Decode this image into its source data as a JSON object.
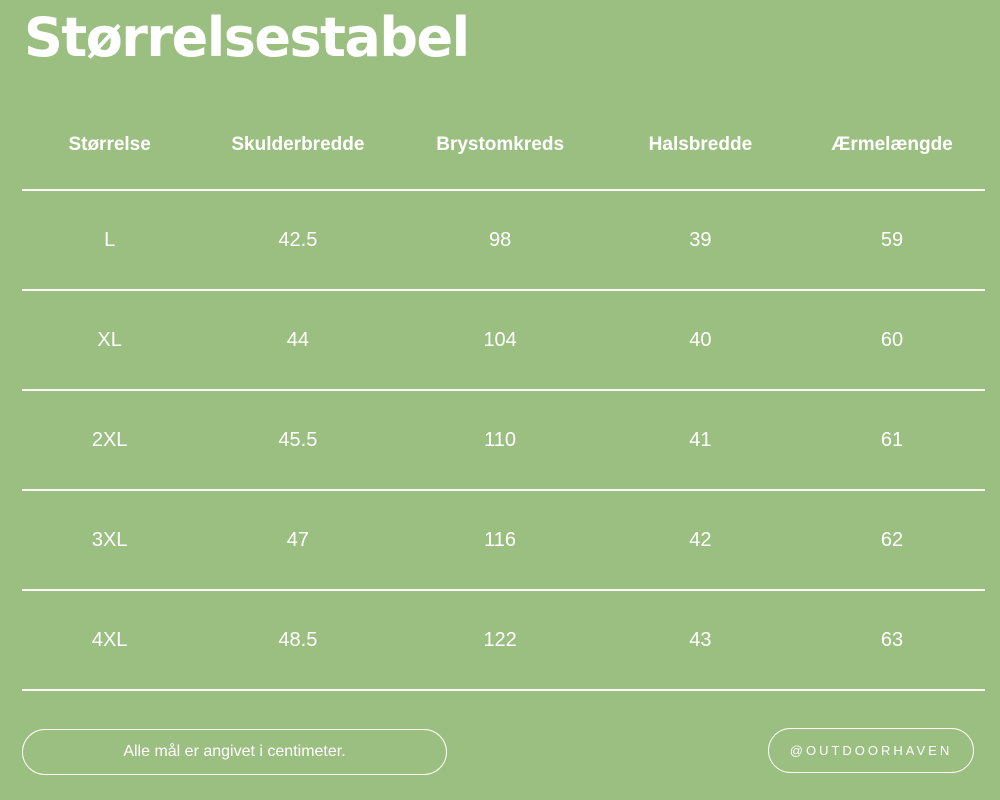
{
  "header": {
    "title": "Størrelsestabel"
  },
  "colors": {
    "background": "#9BBF80",
    "text": "#FFFFFF",
    "divider": "#FFFFFF"
  },
  "chart_data": {
    "type": "table",
    "title": "Størrelsestabel",
    "columns": [
      "Størrelse",
      "Skulderbredde",
      "Brystomkreds",
      "Halsbredde",
      "Ærmelængde"
    ],
    "rows": [
      [
        "L",
        "42.5",
        "98",
        "39",
        "59"
      ],
      [
        "XL",
        "44",
        "104",
        "40",
        "60"
      ],
      [
        "2XL",
        "45.5",
        "110",
        "41",
        "61"
      ],
      [
        "3XL",
        "47",
        "116",
        "42",
        "62"
      ],
      [
        "4XL",
        "48.5",
        "122",
        "43",
        "63"
      ]
    ],
    "layout": {
      "grid": "horizontal-rules-only",
      "header_style": "bold"
    }
  },
  "footer": {
    "note": "Alle mål er angivet i centimeter.",
    "handle": "@OUTDOORHAVEN"
  }
}
